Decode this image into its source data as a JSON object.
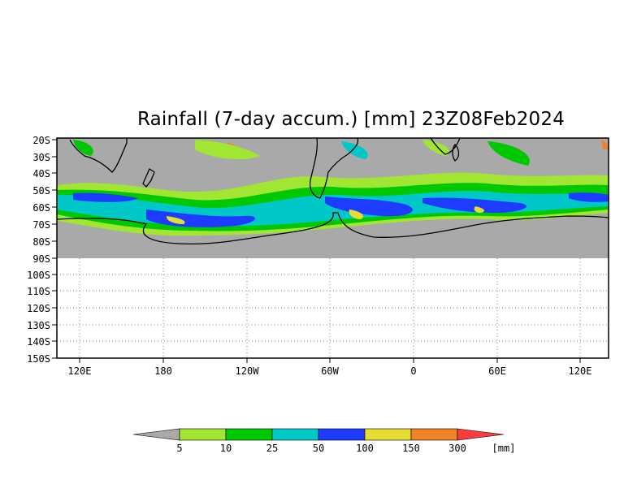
{
  "title": "Rainfall (7-day accum.) [mm] 23Z08Feb2024",
  "lat_labels": [
    "20S",
    "30S",
    "40S",
    "50S",
    "60S",
    "70S",
    "80S",
    "90S",
    "100S",
    "110S",
    "120S",
    "130S",
    "140S",
    "150S"
  ],
  "lon_labels": [
    "120E",
    "180",
    "120W",
    "60W",
    "0",
    "60E",
    "120E"
  ],
  "legend": {
    "unit": "[mm]",
    "thresholds": [
      "5",
      "10",
      "25",
      "50",
      "100",
      "150",
      "300"
    ],
    "colors": {
      "below": "#a9a9a9",
      "bins": [
        "#a0e632",
        "#00c800",
        "#00c8c8",
        "#1e3cff",
        "#e6dc32",
        "#f08228"
      ],
      "above": "#fa3c3c"
    }
  },
  "map_colors": {
    "no_rain": "#a9a9a9",
    "coast": "#000000",
    "grid": "#888888"
  }
}
